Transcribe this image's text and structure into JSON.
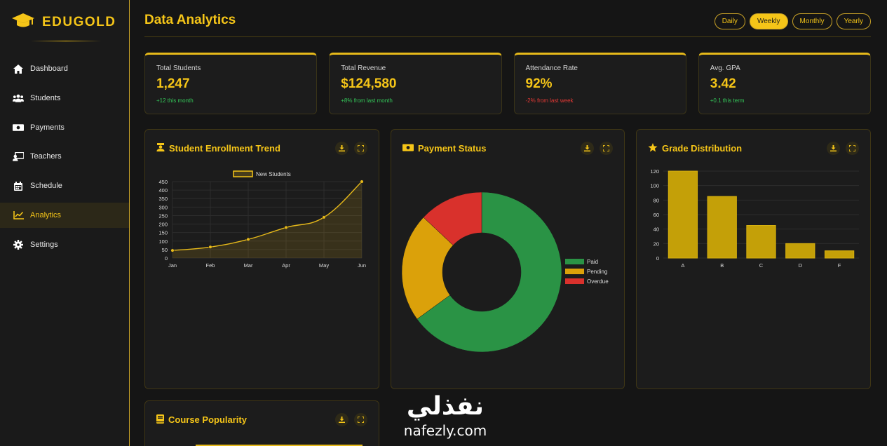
{
  "brand": {
    "name": "EDUGOLD",
    "logo_icon": "graduation-cap-icon"
  },
  "sidebar": {
    "items": [
      {
        "label": "Dashboard",
        "icon": "home-icon"
      },
      {
        "label": "Students",
        "icon": "users-icon"
      },
      {
        "label": "Payments",
        "icon": "money-icon"
      },
      {
        "label": "Teachers",
        "icon": "teacher-icon"
      },
      {
        "label": "Schedule",
        "icon": "calendar-icon"
      },
      {
        "label": "Analytics",
        "icon": "chart-line-icon",
        "active": true
      },
      {
        "label": "Settings",
        "icon": "gear-icon"
      }
    ]
  },
  "header": {
    "title": "Data Analytics",
    "periods": [
      "Daily",
      "Weekly",
      "Monthly",
      "Yearly"
    ],
    "active_period": "Weekly"
  },
  "stats": [
    {
      "label": "Total Students",
      "value": "1,247",
      "change": "+12 this month",
      "trend": "up"
    },
    {
      "label": "Total Revenue",
      "value": "$124,580",
      "change": "+8% from last month",
      "trend": "up"
    },
    {
      "label": "Attendance Rate",
      "value": "92%",
      "change": "-2% from last week",
      "trend": "down"
    },
    {
      "label": "Avg. GPA",
      "value": "3.42",
      "change": "+0.1 this term",
      "trend": "up"
    }
  ],
  "cards": {
    "enrollment": {
      "title": "Student Enrollment Trend",
      "icon": "graduate-icon"
    },
    "payment": {
      "title": "Payment Status",
      "icon": "money-icon"
    },
    "grades": {
      "title": "Grade Distribution",
      "icon": "star-icon"
    },
    "course": {
      "title": "Course Popularity",
      "icon": "book-icon"
    }
  },
  "colors": {
    "accent": "#f5c518",
    "paid": "#2a9345",
    "pending": "#dba10a",
    "overdue": "#d9312c"
  },
  "watermark": {
    "arabic": "نفذلي",
    "latin": "nafezly.com"
  },
  "chart_data": [
    {
      "type": "line",
      "title": "Student Enrollment Trend",
      "categories": [
        "Jan",
        "Feb",
        "Mar",
        "Apr",
        "May",
        "Jun"
      ],
      "series": [
        {
          "name": "New Students",
          "values": [
            45,
            65,
            110,
            180,
            240,
            450
          ]
        }
      ],
      "ylim": [
        0,
        450
      ],
      "yticks": [
        0,
        50,
        100,
        150,
        200,
        250,
        300,
        350,
        400,
        450
      ],
      "legend": "top",
      "grid": true,
      "fill": true
    },
    {
      "type": "pie",
      "title": "Payment Status",
      "labels": [
        "Paid",
        "Pending",
        "Overdue"
      ],
      "values": [
        65,
        22,
        13
      ],
      "donut": true,
      "legend": "right"
    },
    {
      "type": "bar",
      "title": "Grade Distribution",
      "categories": [
        "A",
        "B",
        "C",
        "D",
        "F"
      ],
      "values": [
        120,
        85,
        45,
        20,
        10
      ],
      "ylim": [
        0,
        120
      ],
      "yticks": [
        0,
        20,
        40,
        60,
        80,
        100,
        120
      ],
      "grid": true
    }
  ]
}
